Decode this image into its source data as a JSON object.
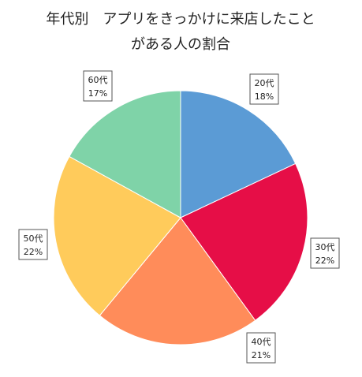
{
  "chart_data": {
    "type": "pie",
    "title": "年代別　アプリをきっかけに来店したことがある人の割合",
    "title_lines": [
      "年代別　アプリをきっかけに来店したこと",
      "がある人の割合"
    ],
    "categories": [
      "20代",
      "30代",
      "40代",
      "50代",
      "60代"
    ],
    "values": [
      18,
      22,
      21,
      22,
      17
    ],
    "labels": [
      "18%",
      "22%",
      "21%",
      "22%",
      "17%"
    ],
    "colors": [
      "#5b9bd5",
      "#e60e47",
      "#ff8c5a",
      "#ffcb5b",
      "#7fd3a8"
    ],
    "start_angle": "12 o'clock",
    "direction": "clockwise",
    "legend": "none"
  }
}
